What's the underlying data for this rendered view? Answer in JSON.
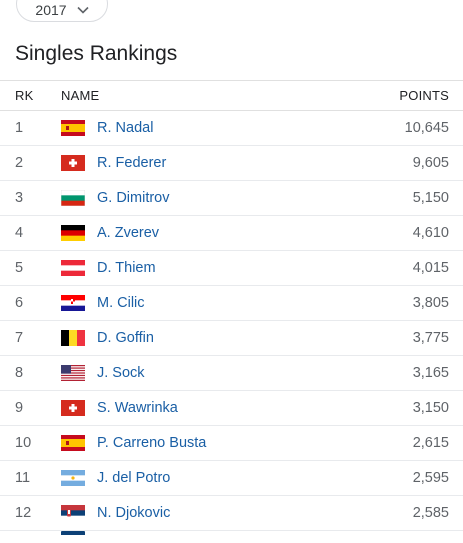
{
  "year_selector": {
    "value": "2017"
  },
  "page_title": "Singles Rankings",
  "columns": {
    "rank": "RK",
    "name": "NAME",
    "points": "POINTS"
  },
  "rows": [
    {
      "rank": "1",
      "name": "R. Nadal",
      "points": "10,645",
      "flag": "spain-flag-icon"
    },
    {
      "rank": "2",
      "name": "R. Federer",
      "points": "9,605",
      "flag": "switzerland-flag-icon"
    },
    {
      "rank": "3",
      "name": "G. Dimitrov",
      "points": "5,150",
      "flag": "bulgaria-flag-icon"
    },
    {
      "rank": "4",
      "name": "A. Zverev",
      "points": "4,610",
      "flag": "germany-flag-icon"
    },
    {
      "rank": "5",
      "name": "D. Thiem",
      "points": "4,015",
      "flag": "austria-flag-icon"
    },
    {
      "rank": "6",
      "name": "M. Cilic",
      "points": "3,805",
      "flag": "croatia-flag-icon"
    },
    {
      "rank": "7",
      "name": "D. Goffin",
      "points": "3,775",
      "flag": "belgium-flag-icon"
    },
    {
      "rank": "8",
      "name": "J. Sock",
      "points": "3,165",
      "flag": "usa-flag-icon"
    },
    {
      "rank": "9",
      "name": "S. Wawrinka",
      "points": "3,150",
      "flag": "switzerland-flag-icon"
    },
    {
      "rank": "10",
      "name": "P. Carreno Busta",
      "points": "2,615",
      "flag": "spain-flag-icon"
    },
    {
      "rank": "11",
      "name": "J. del Potro",
      "points": "2,595",
      "flag": "argentina-flag-icon"
    },
    {
      "rank": "12",
      "name": "N. Djokovic",
      "points": "2,585",
      "flag": "serbia-flag-icon"
    }
  ],
  "colors": {
    "link": "#1a5fa5",
    "muted": "#5f6368",
    "divider": "#e8eaed"
  }
}
